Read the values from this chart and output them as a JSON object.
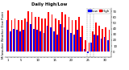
{
  "title": "Milwaukee Weather Dew Point",
  "subtitle": "Daily High/Low",
  "background_color": "#ffffff",
  "bar_color_high": "#ff0000",
  "bar_color_low": "#0000ff",
  "ylim": [
    -10,
    75
  ],
  "yticks": [
    0,
    10,
    20,
    30,
    40,
    50,
    60,
    70
  ],
  "legend_high": "High",
  "legend_low": "Low",
  "high_values": [
    72,
    55,
    58,
    55,
    55,
    58,
    70,
    68,
    60,
    60,
    58,
    58,
    68,
    65,
    58,
    55,
    68,
    65,
    60,
    55,
    55,
    60,
    45,
    20,
    15,
    35,
    50,
    45,
    40,
    42,
    38
  ],
  "low_values": [
    55,
    35,
    40,
    38,
    35,
    38,
    52,
    48,
    40,
    38,
    35,
    32,
    45,
    42,
    35,
    30,
    48,
    42,
    38,
    32,
    30,
    38,
    25,
    5,
    -2,
    15,
    30,
    28,
    22,
    25,
    20
  ],
  "x_labels": [
    "1",
    "",
    "",
    "",
    "5",
    "",
    "",
    "",
    "",
    "10",
    "",
    "",
    "",
    "",
    "15",
    "",
    "",
    "",
    "",
    "20",
    "",
    "",
    "",
    "",
    "25",
    "",
    "",
    "",
    "",
    "30",
    ""
  ],
  "dashed_vline_positions": [
    23.5,
    24.5,
    25.5
  ],
  "title_fontsize": 3.8,
  "tick_fontsize": 2.8,
  "legend_fontsize": 3.0
}
